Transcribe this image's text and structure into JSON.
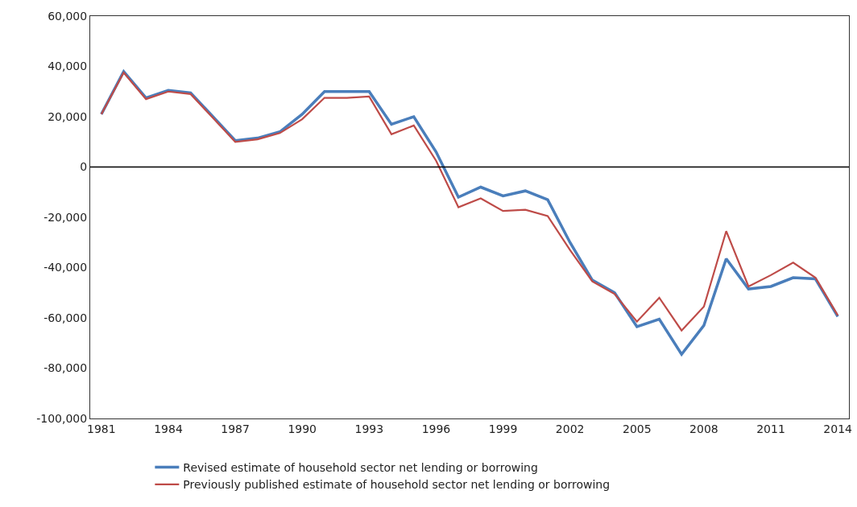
{
  "chart_data": {
    "type": "line",
    "x": [
      1981,
      1982,
      1983,
      1984,
      1985,
      1986,
      1987,
      1988,
      1989,
      1990,
      1991,
      1992,
      1993,
      1994,
      1995,
      1996,
      1997,
      1998,
      1999,
      2000,
      2001,
      2002,
      2003,
      2004,
      2005,
      2006,
      2007,
      2008,
      2009,
      2010,
      2011,
      2012,
      2013,
      2014
    ],
    "series": [
      {
        "name": "Revised estimate of household sector net lending or borrowing",
        "color": "#4a7ebb",
        "values": [
          21000,
          38000,
          27500,
          30500,
          29500,
          20000,
          10500,
          11500,
          14000,
          21000,
          30000,
          30000,
          30000,
          17000,
          20000,
          6000,
          -12000,
          -8000,
          -11500,
          -9500,
          -13000,
          -30000,
          -45000,
          -50000,
          -63500,
          -60500,
          -74500,
          -63000,
          -36500,
          -48500,
          -47500,
          -44000,
          -44500,
          -59500
        ]
      },
      {
        "name": "Previously published estimate of household sector net lending or borrowing",
        "color": "#be4b48",
        "values": [
          21000,
          37500,
          27000,
          30000,
          29000,
          19500,
          10000,
          11000,
          13500,
          19000,
          27500,
          27500,
          28000,
          13000,
          16500,
          2500,
          -16000,
          -12500,
          -17500,
          -17000,
          -19500,
          -33000,
          -45500,
          -50500,
          -61500,
          -52000,
          -65000,
          -55500,
          -25500,
          -47500,
          -43000,
          -38000,
          -44000,
          -59000
        ]
      }
    ],
    "xlim": [
      1980.5,
      2014.5
    ],
    "xticks": [
      1981,
      1984,
      1987,
      1990,
      1993,
      1996,
      1999,
      2002,
      2005,
      2008,
      2011,
      2014
    ],
    "ylim": [
      -100000,
      60000
    ],
    "yticks": [
      {
        "value": -100000,
        "label": "-100,000"
      },
      {
        "value": -80000,
        "label": "-80,000"
      },
      {
        "value": -60000,
        "label": "-60,000"
      },
      {
        "value": -40000,
        "label": "-40,000"
      },
      {
        "value": -20000,
        "label": "-20,000"
      },
      0,
      {
        "value": 20000,
        "label": "20,000"
      },
      {
        "value": 40000,
        "label": "40,000"
      },
      {
        "value": 60000,
        "label": "60,000"
      }
    ],
    "ref_lines": [
      {
        "axis": "y",
        "value": 0,
        "color": "#000000"
      }
    ],
    "grid": false,
    "legend": "bottom",
    "marker": "none",
    "line_style": "solid"
  }
}
